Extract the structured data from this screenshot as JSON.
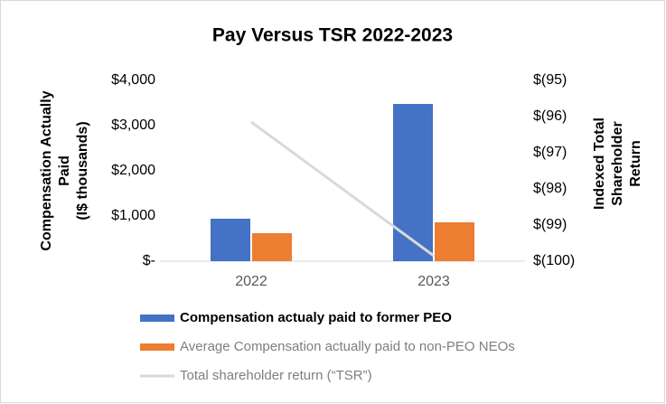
{
  "chart_data": {
    "type": "bar",
    "title": "Pay Versus TSR 2022-2023",
    "ylabel": [
      "Compensation Actually",
      "Paid",
      "(I$ thousands)"
    ],
    "y2label": [
      "Indexed Total",
      "Shareholder",
      "Return"
    ],
    "categories": [
      "2022",
      "2023"
    ],
    "series": [
      {
        "name": "Compensation actualy paid to former PEO",
        "type": "bar",
        "color": "#4472c4",
        "values": [
          940,
          3480
        ]
      },
      {
        "name": "Average Compensation actually paid to non-PEO NEOs",
        "type": "bar",
        "color": "#ed7d31",
        "values": [
          620,
          860
        ]
      },
      {
        "name": "Total shareholder return (“TSR”)",
        "type": "line",
        "axis": "y2",
        "color": "#d9d9d9",
        "values": [
          -96.15,
          -99.85
        ]
      }
    ],
    "ylim": [
      0,
      4000
    ],
    "yticks": [
      {
        "value": 0,
        "label": "$-"
      },
      {
        "value": 1000,
        "label": "$1,000"
      },
      {
        "value": 2000,
        "label": "$2,000"
      },
      {
        "value": 3000,
        "label": "$3,000"
      },
      {
        "value": 4000,
        "label": "$4,000"
      }
    ],
    "y2lim": [
      -100,
      -95
    ],
    "y2ticks": [
      {
        "value": -100,
        "label": "$(100)"
      },
      {
        "value": -99,
        "label": "$(99)"
      },
      {
        "value": -98,
        "label": "$(98)"
      },
      {
        "value": -97,
        "label": "$(97)"
      },
      {
        "value": -96,
        "label": "$(96)"
      },
      {
        "value": -95,
        "label": "$(95)"
      }
    ],
    "grid": false,
    "legend": "bottom"
  }
}
